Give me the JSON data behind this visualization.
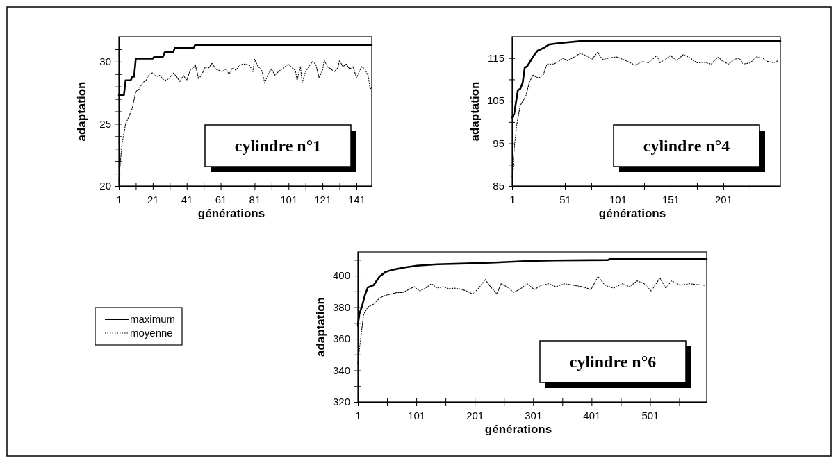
{
  "chart_data": [
    {
      "type": "line",
      "xlabel": "générations",
      "ylabel": "adaptation",
      "annotations": [
        "cylindre n°1"
      ],
      "legend": false,
      "grid": false,
      "xlim": [
        1,
        150
      ],
      "xticks": [
        1,
        {
          "value": 11,
          "label": null
        },
        21,
        {
          "value": 31,
          "label": null
        },
        41,
        {
          "value": 51,
          "label": null
        },
        61,
        {
          "value": 71,
          "label": null
        },
        81,
        {
          "value": 91,
          "label": null
        },
        101,
        {
          "value": 111,
          "label": null
        },
        121,
        {
          "value": 131,
          "label": null
        },
        141
      ],
      "ylim": [
        20,
        32
      ],
      "yticks": [
        20,
        {
          "value": 21,
          "label": null
        },
        {
          "value": 22,
          "label": null
        },
        {
          "value": 23,
          "label": null
        },
        {
          "value": 24,
          "label": null
        },
        25,
        {
          "value": 26,
          "label": null
        },
        {
          "value": 27,
          "label": null
        },
        {
          "value": 28,
          "label": null
        },
        {
          "value": 29,
          "label": null
        },
        30,
        {
          "value": 31,
          "label": null
        }
      ],
      "series": [
        {
          "color": "#000000",
          "line_style": "solid",
          "x": [
            1,
            4,
            5,
            8,
            9,
            10,
            11,
            21,
            22,
            27,
            28,
            33,
            34,
            45,
            46,
            150
          ],
          "values": [
            27.3,
            27.3,
            28.5,
            28.5,
            28.8,
            28.8,
            30.25,
            30.25,
            30.4,
            30.4,
            30.75,
            30.75,
            31.1,
            31.1,
            31.35,
            31.35
          ]
        },
        {
          "color": "#000000",
          "line_style": "dotted",
          "x": [
            1,
            2,
            3,
            5,
            7,
            9,
            11,
            13,
            15,
            17,
            19,
            21,
            23,
            25,
            27,
            29,
            31,
            33,
            35,
            37,
            39,
            41,
            43,
            45,
            46,
            48,
            50,
            52,
            54,
            56,
            58,
            60,
            62,
            64,
            66,
            68,
            70,
            72,
            74,
            76,
            78,
            80,
            81,
            83,
            85,
            87,
            89,
            91,
            93,
            95,
            97,
            99,
            101,
            103,
            105,
            106,
            108,
            109,
            111,
            113,
            115,
            117,
            119,
            121,
            122,
            124,
            126,
            128,
            130,
            131,
            133,
            135,
            137,
            139,
            141,
            144,
            146,
            148,
            149,
            150
          ],
          "values": [
            20.4,
            22.1,
            23.5,
            25.0,
            25.6,
            26.3,
            27.6,
            27.8,
            28.3,
            28.5,
            29.0,
            29.1,
            28.8,
            28.9,
            28.6,
            28.5,
            28.7,
            29.1,
            28.8,
            28.4,
            28.9,
            28.5,
            29.3,
            29.5,
            29.8,
            28.6,
            29.0,
            29.6,
            29.5,
            29.9,
            29.4,
            29.3,
            29.2,
            29.4,
            29.0,
            29.5,
            29.3,
            29.7,
            29.8,
            29.8,
            29.7,
            29.2,
            30.2,
            29.6,
            29.4,
            28.3,
            29.0,
            29.4,
            28.9,
            29.2,
            29.4,
            29.6,
            29.8,
            29.5,
            29.3,
            28.5,
            29.6,
            28.3,
            29.2,
            29.6,
            30.0,
            29.8,
            28.7,
            29.3,
            30.1,
            29.6,
            29.4,
            29.2,
            29.5,
            30.1,
            29.6,
            29.8,
            29.4,
            29.6,
            28.7,
            29.6,
            29.4,
            28.8,
            27.8,
            27.9
          ]
        }
      ]
    },
    {
      "type": "line",
      "xlabel": "générations",
      "ylabel": "adaptation",
      "annotations": [
        "cylindre n°4"
      ],
      "legend": false,
      "grid": false,
      "xlim": [
        1,
        255
      ],
      "xticks": [
        1,
        {
          "value": 26,
          "label": null
        },
        51,
        {
          "value": 76,
          "label": null
        },
        101,
        {
          "value": 126,
          "label": null
        },
        151,
        {
          "value": 176,
          "label": null
        },
        201,
        {
          "value": 226,
          "label": null
        }
      ],
      "ylim": [
        85,
        120
      ],
      "yticks": [
        85,
        {
          "value": 90,
          "label": null
        },
        95,
        {
          "value": 100,
          "label": null
        },
        105,
        {
          "value": 110,
          "label": null
        },
        115
      ],
      "series": [
        {
          "color": "#000000",
          "line_style": "solid",
          "x": [
            1,
            3,
            6.5,
            8.7,
            11,
            13,
            15,
            17.4,
            20.7,
            25,
            31.7,
            36,
            45,
            66.8,
            255
          ],
          "values": [
            101.1,
            102,
            107.5,
            107.8,
            109.2,
            112.8,
            113,
            113.9,
            115.3,
            116.7,
            117.5,
            118.2,
            118.5,
            119,
            119
          ]
        },
        {
          "color": "#000000",
          "line_style": "dotted",
          "x": [
            1,
            3,
            5.4,
            8.7,
            14,
            17.4,
            20.7,
            26,
            30.6,
            34,
            40.5,
            45,
            49,
            53.6,
            58,
            62,
            65.7,
            71,
            76.7,
            82,
            86.5,
            93,
            99.7,
            106,
            112.8,
            118,
            123.8,
            130,
            138,
            141,
            146,
            151,
            156.7,
            163,
            169.9,
            176,
            183,
            189.6,
            196,
            200.6,
            206,
            211.5,
            216,
            220,
            226.8,
            232,
            238,
            243,
            249,
            253
          ],
          "values": [
            87.2,
            93.9,
            99.4,
            103.9,
            106.1,
            109.4,
            111,
            110.3,
            111.1,
            113.6,
            113.6,
            114.2,
            115,
            114.4,
            115,
            115.6,
            116.1,
            115.6,
            114.7,
            116.4,
            114.7,
            115,
            115.3,
            114.7,
            113.9,
            113.3,
            114.2,
            113.9,
            115.6,
            113.9,
            114.7,
            115.6,
            114.4,
            115.8,
            115,
            113.9,
            114,
            113.6,
            115.3,
            114.2,
            113.6,
            114.7,
            115,
            113.6,
            113.9,
            115.3,
            115,
            114.2,
            113.9,
            114.4
          ]
        }
      ]
    },
    {
      "type": "line",
      "xlabel": "générations",
      "ylabel": "adaptation",
      "annotations": [
        "cylindre n°6"
      ],
      "legend": "left",
      "grid": false,
      "xlim": [
        1,
        598
      ],
      "xticks": [
        1,
        {
          "value": 51,
          "label": null
        },
        101,
        {
          "value": 151,
          "label": null
        },
        201,
        {
          "value": 251,
          "label": null
        },
        301,
        {
          "value": 351,
          "label": null
        },
        401,
        {
          "value": 451,
          "label": null
        },
        501,
        {
          "value": 551,
          "label": null
        }
      ],
      "ylim": [
        320,
        415
      ],
      "yticks": [
        320,
        {
          "value": 330,
          "label": null
        },
        340,
        {
          "value": 350,
          "label": null
        },
        360,
        {
          "value": 370,
          "label": null
        },
        380,
        {
          "value": 390,
          "label": null
        },
        400,
        {
          "value": 410,
          "label": null
        }
      ],
      "series": [
        {
          "name": "maximum",
          "color": "#000000",
          "line_style": "solid",
          "x": [
            1,
            3.5,
            8.4,
            13,
            18,
            28,
            38,
            48,
            58,
            78,
            102,
            137,
            187,
            236,
            286,
            335,
            429,
            432,
            598
          ],
          "values": [
            368.2,
            375.6,
            381,
            387.5,
            392.5,
            394,
            399.4,
            402.2,
            403.5,
            405,
            406.3,
            407.2,
            407.7,
            408.3,
            409.2,
            409.6,
            409.9,
            410.5,
            410.5
          ]
        },
        {
          "name": "moyenne",
          "color": "#000000",
          "line_style": "dotted",
          "x": [
            1,
            6,
            11,
            18,
            28,
            38,
            48,
            58,
            68,
            78,
            88,
            97.5,
            107,
            117,
            127,
            137,
            147,
            157,
            167,
            177,
            187,
            197,
            206,
            219,
            226,
            239,
            246,
            256,
            268,
            281,
            291,
            303,
            315,
            328,
            340,
            355,
            370,
            385,
            400,
            412,
            424,
            439,
            454,
            466,
            479,
            491,
            503,
            518,
            528,
            538,
            553,
            568,
            583,
            595
          ],
          "values": [
            344.3,
            360.8,
            375.6,
            380.1,
            382,
            385.7,
            387.5,
            388.4,
            389.3,
            389.3,
            391.2,
            393,
            390.3,
            392.1,
            394.9,
            392.1,
            393,
            391.7,
            392.1,
            391.5,
            390.3,
            388.4,
            391.2,
            397.6,
            393.9,
            388.4,
            394.9,
            393,
            389.3,
            392.1,
            394.9,
            391.2,
            393.9,
            394.9,
            393,
            394.9,
            393.9,
            393,
            391.2,
            399.4,
            393.9,
            392.1,
            394.9,
            393,
            396.7,
            394.9,
            390.3,
            398.5,
            392.1,
            396.7,
            393.9,
            394.9,
            394.3,
            393.9
          ]
        }
      ]
    }
  ]
}
